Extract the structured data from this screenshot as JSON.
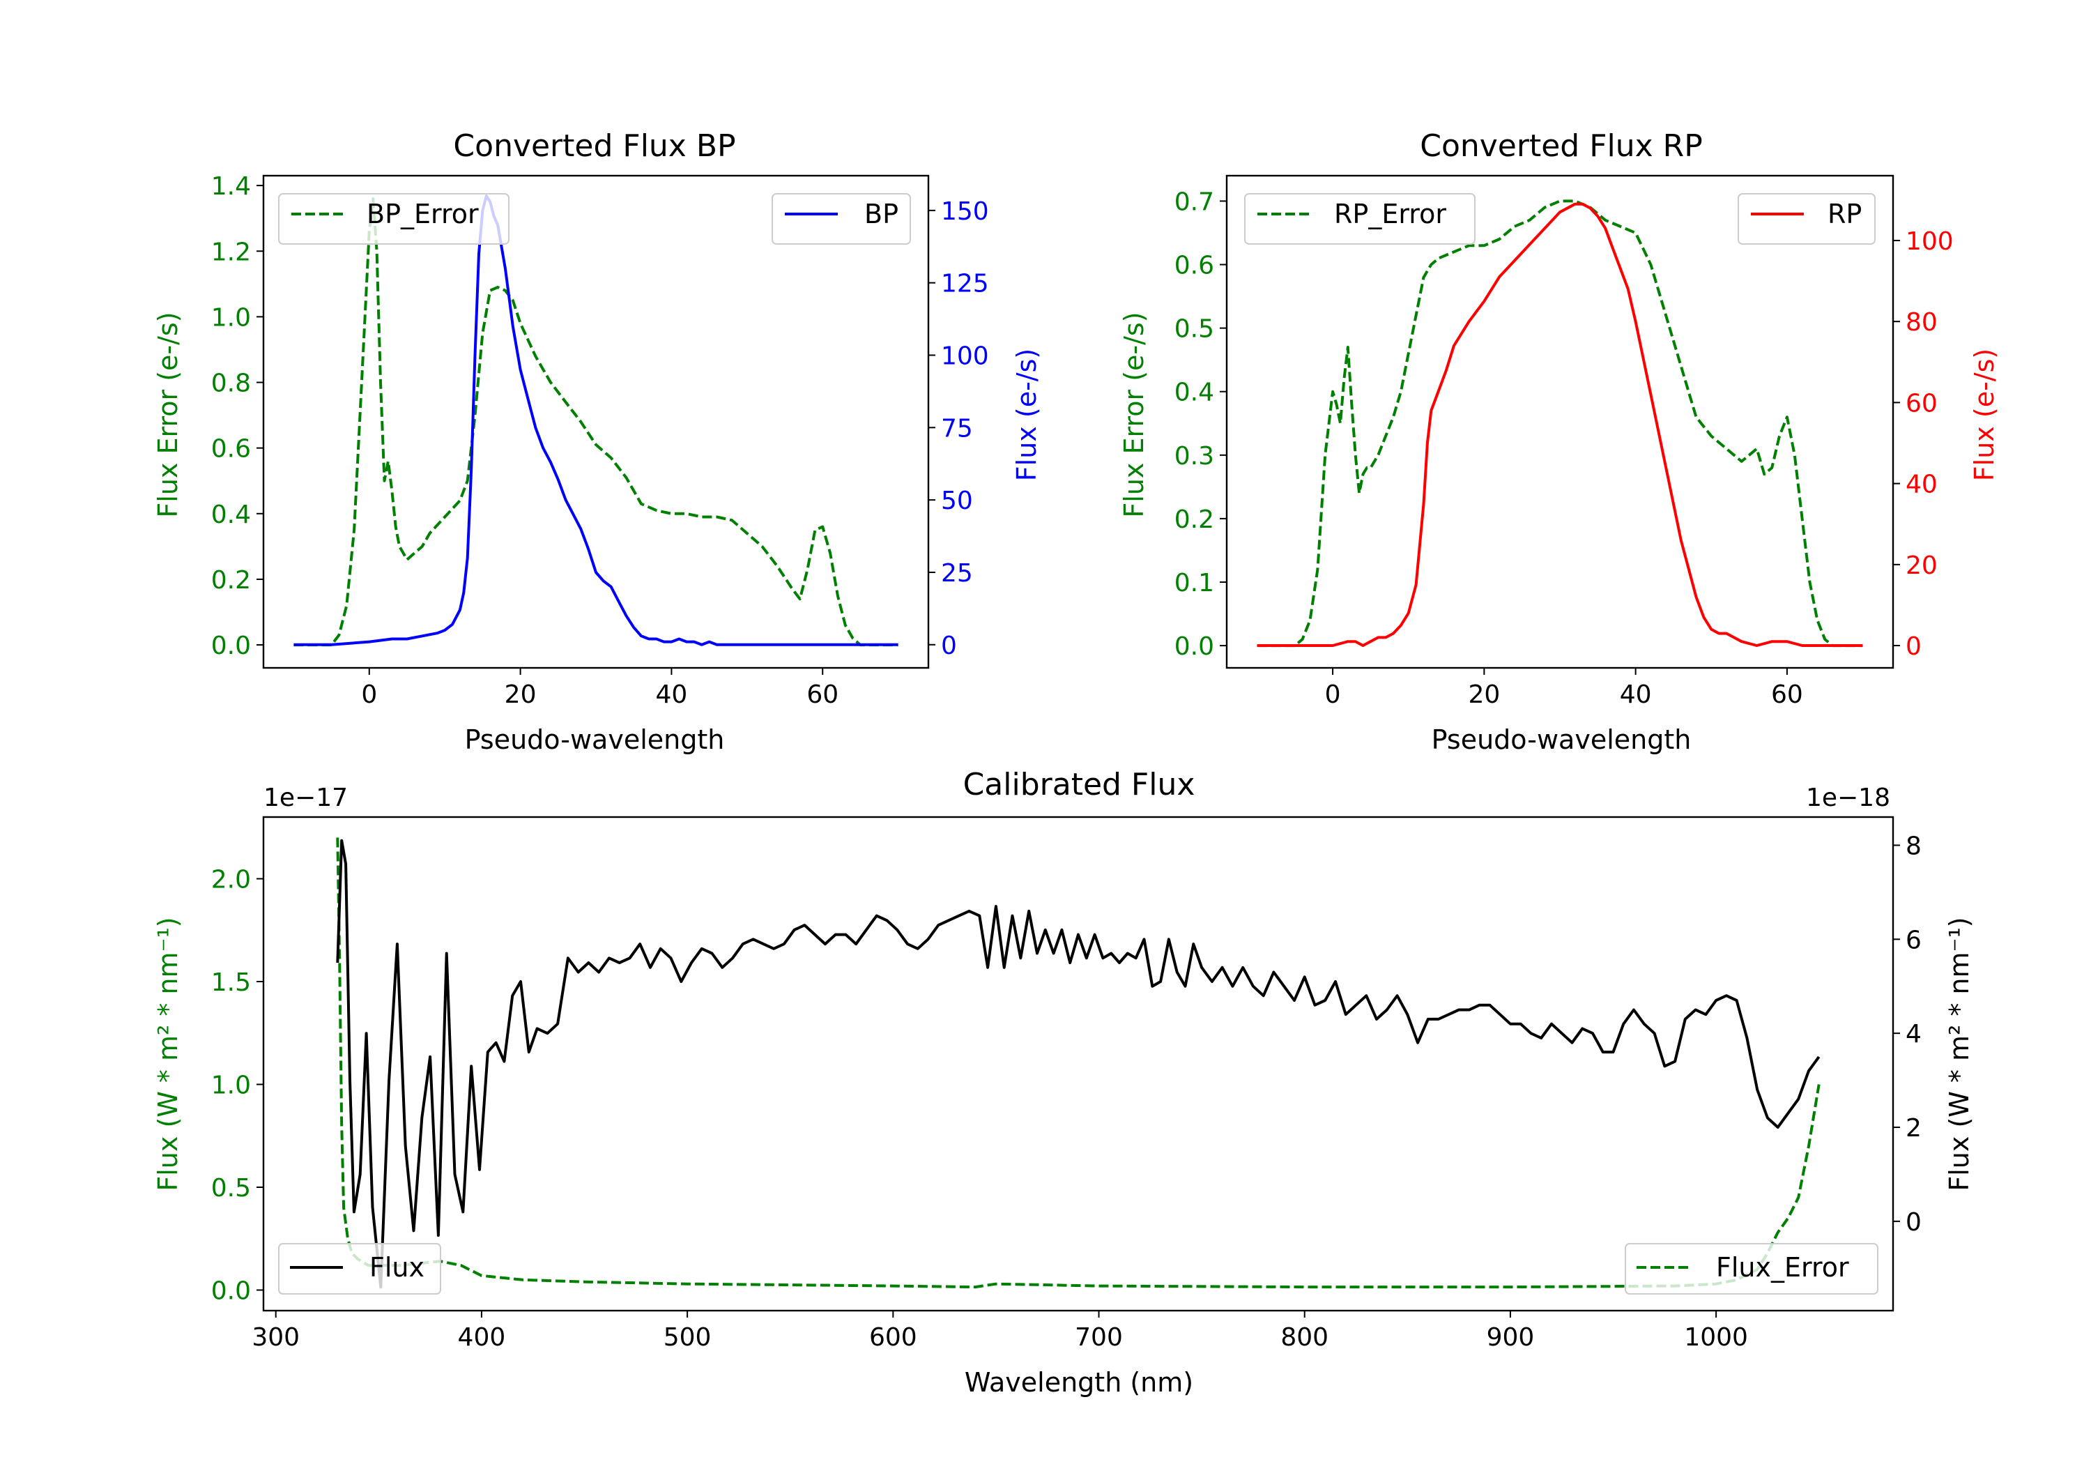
{
  "chart_data": [
    {
      "id": "bp",
      "type": "line",
      "title": "Converted Flux BP",
      "xlabel": "Pseudo-wavelength",
      "ylabel_left": "Flux Error (e-/s)",
      "ylabel_right": "Flux (e-/s)",
      "xlim": [
        -14,
        74
      ],
      "ylim_left": [
        -0.07,
        1.43
      ],
      "ylim_right": [
        -8,
        162
      ],
      "xticks": [
        0,
        20,
        40,
        60
      ],
      "yticks_left": [
        0.0,
        0.2,
        0.4,
        0.6,
        0.8,
        1.0,
        1.2,
        1.4
      ],
      "yticks_right": [
        0,
        25,
        50,
        75,
        100,
        125,
        150
      ],
      "left_axis_color": "#008000",
      "right_axis_color": "#0000ff",
      "series": [
        {
          "name": "BP_Error",
          "axis": "left",
          "color": "#008000",
          "style": "dashed",
          "x": [
            -10,
            -5,
            -4,
            -3,
            -2,
            -1,
            0,
            0.5,
            1,
            1.5,
            2,
            2.5,
            3,
            3.5,
            4,
            5,
            6,
            7,
            8,
            10,
            12,
            13,
            14,
            15,
            16,
            17,
            18,
            19,
            20,
            22,
            24,
            26,
            28,
            30,
            32,
            34,
            36,
            38,
            40,
            42,
            44,
            46,
            48,
            50,
            52,
            54,
            56,
            57,
            58,
            59,
            60,
            61,
            62,
            63,
            64,
            65,
            70
          ],
          "values": [
            0,
            0,
            0.03,
            0.12,
            0.35,
            0.8,
            1.26,
            1.36,
            1.2,
            0.8,
            0.5,
            0.56,
            0.47,
            0.36,
            0.3,
            0.26,
            0.28,
            0.3,
            0.34,
            0.39,
            0.44,
            0.5,
            0.7,
            0.95,
            1.08,
            1.09,
            1.08,
            1.05,
            0.98,
            0.88,
            0.8,
            0.74,
            0.68,
            0.61,
            0.57,
            0.51,
            0.43,
            0.41,
            0.4,
            0.4,
            0.39,
            0.39,
            0.38,
            0.34,
            0.3,
            0.24,
            0.17,
            0.14,
            0.23,
            0.35,
            0.36,
            0.28,
            0.15,
            0.06,
            0.02,
            0,
            0
          ]
        },
        {
          "name": "BP",
          "axis": "right",
          "color": "#0000ff",
          "style": "solid",
          "x": [
            -10,
            -5,
            0,
            3,
            5,
            7,
            9,
            10,
            11,
            12,
            12.5,
            13,
            13.5,
            14,
            14.5,
            15,
            15.5,
            16,
            16.5,
            17,
            18,
            19,
            20,
            21,
            22,
            23,
            24,
            25,
            26,
            27,
            28,
            29,
            30,
            31,
            32,
            33,
            34,
            35,
            36,
            37,
            38,
            39,
            40,
            41,
            42,
            43,
            44,
            45,
            46,
            48,
            50,
            55,
            60,
            65,
            70
          ],
          "values": [
            0,
            0,
            1,
            2,
            2,
            3,
            4,
            5,
            7,
            12,
            18,
            30,
            60,
            100,
            135,
            150,
            155,
            153,
            148,
            145,
            130,
            110,
            95,
            85,
            75,
            68,
            63,
            57,
            50,
            45,
            40,
            33,
            25,
            22,
            20,
            15,
            10,
            6,
            3,
            2,
            2,
            1,
            1,
            2,
            1,
            1,
            0,
            1,
            0,
            0,
            0,
            0,
            0,
            0,
            0
          ]
        }
      ],
      "legend": [
        {
          "label": "BP_Error",
          "position": "upper-left"
        },
        {
          "label": "BP",
          "position": "upper-right"
        }
      ]
    },
    {
      "id": "rp",
      "type": "line",
      "title": "Converted Flux RP",
      "xlabel": "Pseudo-wavelength",
      "ylabel_left": "Flux Error (e-/s)",
      "ylabel_right": "Flux (e-/s)",
      "xlim": [
        -14,
        74
      ],
      "ylim_left": [
        -0.035,
        0.74
      ],
      "ylim_right": [
        -5.5,
        116
      ],
      "xticks": [
        0,
        20,
        40,
        60
      ],
      "yticks_left": [
        0.0,
        0.1,
        0.2,
        0.3,
        0.4,
        0.5,
        0.6,
        0.7
      ],
      "yticks_right": [
        0,
        20,
        40,
        60,
        80,
        100
      ],
      "left_axis_color": "#008000",
      "right_axis_color": "#ff0000",
      "series": [
        {
          "name": "RP_Error",
          "axis": "left",
          "color": "#008000",
          "style": "dashed",
          "x": [
            -10,
            -5,
            -4,
            -3,
            -2,
            -1,
            0,
            0.5,
            1,
            1.5,
            2,
            2.5,
            3,
            3.5,
            4,
            4.5,
            5,
            6,
            7,
            8,
            9,
            10,
            11,
            12,
            13,
            14,
            16,
            18,
            20,
            22,
            24,
            26,
            28,
            30,
            32,
            34,
            36,
            38,
            40,
            42,
            44,
            46,
            48,
            50,
            52,
            54,
            55,
            56,
            57,
            58,
            59,
            60,
            61,
            62,
            63,
            64,
            65,
            66,
            70
          ],
          "values": [
            0,
            0,
            0.01,
            0.04,
            0.12,
            0.3,
            0.4,
            0.38,
            0.35,
            0.42,
            0.47,
            0.38,
            0.3,
            0.24,
            0.27,
            0.28,
            0.28,
            0.3,
            0.33,
            0.36,
            0.4,
            0.46,
            0.52,
            0.58,
            0.6,
            0.61,
            0.62,
            0.63,
            0.63,
            0.64,
            0.66,
            0.67,
            0.69,
            0.7,
            0.7,
            0.69,
            0.67,
            0.66,
            0.65,
            0.6,
            0.52,
            0.44,
            0.36,
            0.33,
            0.31,
            0.29,
            0.3,
            0.31,
            0.27,
            0.28,
            0.33,
            0.36,
            0.3,
            0.2,
            0.1,
            0.04,
            0.01,
            0,
            0
          ]
        },
        {
          "name": "RP",
          "axis": "right",
          "color": "#ff0000",
          "style": "solid",
          "x": [
            -10,
            -5,
            0,
            2,
            3,
            4,
            5,
            6,
            7,
            8,
            9,
            10,
            11,
            12,
            12.5,
            13,
            14,
            15,
            16,
            18,
            20,
            22,
            24,
            26,
            28,
            30,
            32,
            33,
            34,
            35,
            36,
            37,
            38,
            39,
            40,
            42,
            44,
            46,
            48,
            49,
            50,
            51,
            52,
            54,
            56,
            58,
            60,
            62,
            65,
            70
          ],
          "values": [
            0,
            0,
            0,
            1,
            1,
            0,
            1,
            2,
            2,
            3,
            5,
            8,
            15,
            35,
            50,
            58,
            63,
            68,
            74,
            80,
            85,
            91,
            95,
            99,
            103,
            107,
            109,
            109,
            108,
            106,
            103,
            98,
            93,
            88,
            80,
            62,
            44,
            26,
            12,
            7,
            4,
            3,
            3,
            1,
            0,
            1,
            1,
            0,
            0,
            0
          ]
        }
      ],
      "legend": [
        {
          "label": "RP_Error",
          "position": "upper-left"
        },
        {
          "label": "RP",
          "position": "upper-right"
        }
      ]
    },
    {
      "id": "cal",
      "type": "line",
      "title": "Calibrated Flux",
      "xlabel": "Wavelength (nm)",
      "ylabel_left": "Flux (W * m² * nm⁻¹)",
      "ylabel_right": "Flux (W * m² * nm⁻¹)",
      "offset_left": "1e−17",
      "offset_right": "1e−18",
      "xlim": [
        294,
        1086
      ],
      "ylim_left": [
        -0.1,
        2.3
      ],
      "ylim_right": [
        -1.9,
        8.6
      ],
      "xticks": [
        300,
        400,
        500,
        600,
        700,
        800,
        900,
        1000
      ],
      "yticks_left": [
        0.0,
        0.5,
        1.0,
        1.5,
        2.0
      ],
      "yticks_right": [
        0,
        2,
        4,
        6,
        8
      ],
      "left_axis_color": "#008000",
      "right_axis_color": "#000000",
      "series": [
        {
          "name": "Flux_Error",
          "axis": "left",
          "color": "#008000",
          "style": "dashed",
          "x": [
            330,
            331,
            332,
            333,
            335,
            337,
            340,
            345,
            350,
            360,
            370,
            380,
            390,
            400,
            420,
            450,
            500,
            550,
            600,
            640,
            650,
            700,
            800,
            900,
            980,
            1000,
            1010,
            1020,
            1025,
            1030,
            1035,
            1040,
            1045,
            1050
          ],
          "values": [
            2.2,
            1.6,
            0.8,
            0.4,
            0.25,
            0.18,
            0.15,
            0.12,
            0.12,
            0.12,
            0.13,
            0.14,
            0.12,
            0.07,
            0.05,
            0.04,
            0.03,
            0.025,
            0.02,
            0.015,
            0.03,
            0.02,
            0.015,
            0.015,
            0.02,
            0.03,
            0.05,
            0.1,
            0.18,
            0.28,
            0.35,
            0.45,
            0.7,
            1.0
          ]
        },
        {
          "name": "Flux",
          "axis": "right",
          "color": "#000000",
          "style": "solid",
          "x": [
            330,
            332,
            334,
            336,
            338,
            341,
            344,
            347,
            351,
            355,
            359,
            363,
            367,
            371,
            375,
            379,
            383,
            387,
            391,
            395,
            399,
            403,
            407,
            411,
            415,
            419,
            423,
            427,
            432,
            437,
            442,
            447,
            452,
            457,
            462,
            467,
            472,
            477,
            482,
            487,
            492,
            497,
            502,
            507,
            512,
            517,
            522,
            527,
            532,
            537,
            542,
            547,
            552,
            557,
            562,
            567,
            572,
            577,
            582,
            587,
            592,
            597,
            602,
            607,
            612,
            617,
            622,
            627,
            632,
            637,
            642,
            646,
            650,
            654,
            658,
            662,
            666,
            670,
            674,
            678,
            682,
            686,
            690,
            694,
            698,
            702,
            706,
            710,
            714,
            718,
            722,
            726,
            730,
            734,
            738,
            742,
            746,
            750,
            755,
            760,
            765,
            770,
            775,
            780,
            785,
            790,
            795,
            800,
            805,
            810,
            815,
            820,
            825,
            830,
            835,
            840,
            845,
            850,
            855,
            860,
            865,
            870,
            875,
            880,
            885,
            890,
            895,
            900,
            905,
            910,
            915,
            920,
            925,
            930,
            935,
            940,
            945,
            950,
            955,
            960,
            965,
            970,
            975,
            980,
            985,
            990,
            995,
            1000,
            1005,
            1010,
            1015,
            1020,
            1025,
            1030,
            1035,
            1040,
            1045,
            1050
          ],
          "values": [
            5.5,
            8.1,
            7.6,
            3.0,
            0.2,
            1.0,
            4.0,
            0.3,
            -1.4,
            3.0,
            5.9,
            1.6,
            -0.2,
            2.2,
            3.5,
            -0.3,
            5.7,
            1.0,
            0.2,
            3.3,
            1.1,
            3.6,
            3.8,
            3.4,
            4.8,
            5.1,
            3.6,
            4.1,
            4.0,
            4.2,
            5.6,
            5.3,
            5.5,
            5.3,
            5.6,
            5.5,
            5.6,
            5.9,
            5.4,
            5.8,
            5.6,
            5.1,
            5.5,
            5.8,
            5.7,
            5.4,
            5.6,
            5.9,
            6.0,
            5.9,
            5.8,
            5.9,
            6.2,
            6.3,
            6.1,
            5.9,
            6.1,
            6.1,
            5.9,
            6.2,
            6.5,
            6.4,
            6.2,
            5.9,
            5.8,
            6.0,
            6.3,
            6.4,
            6.5,
            6.6,
            6.5,
            5.4,
            6.7,
            5.4,
            6.5,
            5.6,
            6.6,
            5.7,
            6.2,
            5.7,
            6.2,
            5.5,
            6.1,
            5.6,
            6.1,
            5.6,
            5.7,
            5.5,
            5.7,
            5.6,
            6.0,
            5.0,
            5.1,
            6.0,
            5.3,
            5.0,
            5.9,
            5.4,
            5.1,
            5.4,
            5.0,
            5.4,
            5.0,
            4.8,
            5.3,
            5.0,
            4.7,
            5.2,
            4.6,
            4.7,
            5.1,
            4.4,
            4.6,
            4.8,
            4.3,
            4.5,
            4.8,
            4.4,
            3.8,
            4.3,
            4.3,
            4.4,
            4.5,
            4.5,
            4.6,
            4.6,
            4.4,
            4.2,
            4.2,
            4.0,
            3.9,
            4.2,
            4.0,
            3.8,
            4.1,
            4.0,
            3.6,
            3.6,
            4.2,
            4.5,
            4.2,
            4.0,
            3.3,
            3.4,
            4.3,
            4.5,
            4.4,
            4.7,
            4.8,
            4.7,
            3.9,
            2.8,
            2.2,
            2.0,
            2.3,
            2.6,
            3.2,
            3.5
          ]
        }
      ],
      "legend": [
        {
          "label": "Flux",
          "position": "lower-left"
        },
        {
          "label": "Flux_Error",
          "position": "lower-right"
        }
      ]
    }
  ]
}
